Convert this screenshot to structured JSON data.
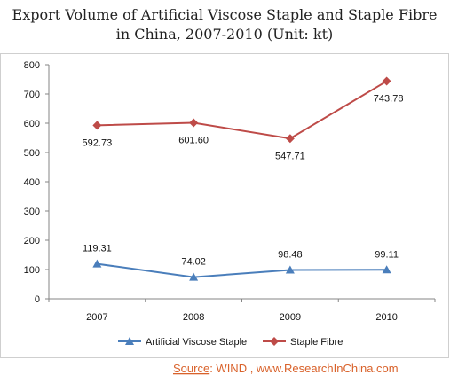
{
  "chart_data": {
    "type": "line",
    "title_lines": [
      "Export Volume of Artificial Viscose Staple and Staple Fibre",
      "in China, 2007-2010 (Unit: kt)"
    ],
    "categories": [
      "2007",
      "2008",
      "2009",
      "2010"
    ],
    "y_ticks": [
      "0",
      "100",
      "200",
      "300",
      "400",
      "500",
      "600",
      "700",
      "800"
    ],
    "ylim": [
      0,
      800
    ],
    "grid": false,
    "legend_position": "bottom",
    "series": [
      {
        "name": "Artificial Viscose Staple",
        "values": [
          119.31,
          74.02,
          98.48,
          99.11
        ],
        "labels": [
          "119.31",
          "74.02",
          "98.48",
          "99.11"
        ],
        "color": "#4a7ebb",
        "marker": "triangle"
      },
      {
        "name": "Staple Fibre",
        "values": [
          592.73,
          601.6,
          547.71,
          743.78
        ],
        "labels": [
          "592.73",
          "601.60",
          "547.71",
          "743.78"
        ],
        "color": "#be4b48",
        "marker": "diamond"
      }
    ]
  },
  "source": {
    "prefix": "Source",
    "text": ": WIND , www.ResearchInChina.com"
  }
}
